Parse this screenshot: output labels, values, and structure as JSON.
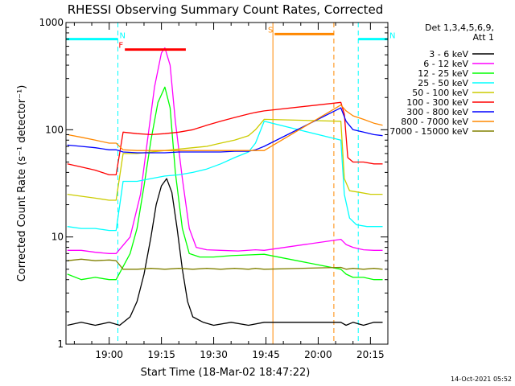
{
  "chart_data": {
    "type": "line",
    "title": "RHESSI Observing Summary Count Rates, Corrected",
    "xlabel": "Start Time (18-Mar-02 18:47:22)",
    "ylabel": "Corrected Count Rate (s⁻¹ detector⁻¹)",
    "yscale": "log",
    "ylim": [
      1,
      1000
    ],
    "xlim_minutes": [
      -12.4,
      80
    ],
    "x_ticks": [
      "19:00",
      "19:15",
      "19:30",
      "19:45",
      "20:00",
      "20:15"
    ],
    "x_tick_minutes": [
      0,
      15,
      30,
      45,
      60,
      75
    ],
    "y_ticks": [
      "1",
      "10",
      "100",
      "1000"
    ],
    "y_tick_values": [
      1,
      10,
      100,
      1000
    ],
    "legend_header": [
      "Det 1,3,4,5,6,9,",
      "Att 1"
    ],
    "legend_position": "right",
    "timestamp": "14-Oct-2021 05:52",
    "markers": [
      {
        "label": "N",
        "color": "#00ffff",
        "x_start": -12.4,
        "x_end": 2.5,
        "y": 700
      },
      {
        "label": "N",
        "color": "#00ffff",
        "x_start": 71.5,
        "x_end": 80,
        "y": 700
      },
      {
        "label": "F",
        "color": "#ff0000",
        "x_start": 4.5,
        "x_end": 22.0,
        "y": 560
      },
      {
        "label": "S",
        "color": "#ff8800",
        "x_start": 47.5,
        "x_end": 64.5,
        "y": 780
      }
    ],
    "gaps": [
      {
        "label": "night",
        "color": "#00ffff",
        "x_start": 2.5,
        "x_end": 71.5
      },
      {
        "label": "saa",
        "color": "#ff8800",
        "x_start": 47.0,
        "x_end": 64.5
      }
    ],
    "series": [
      {
        "name": "3 - 6 keV",
        "color": "#000000",
        "x": [
          -12,
          -8,
          -4,
          0,
          3,
          6,
          8,
          10,
          12,
          13.5,
          15,
          16.5,
          18,
          19.5,
          21,
          22.5,
          24,
          27,
          30,
          35,
          40,
          44.5,
          66.5,
          68,
          70,
          73,
          76,
          78.5
        ],
        "y": [
          1.5,
          1.6,
          1.5,
          1.6,
          1.5,
          1.8,
          2.5,
          4.5,
          10,
          20,
          30,
          35,
          26,
          12,
          5,
          2.5,
          1.8,
          1.6,
          1.5,
          1.6,
          1.5,
          1.6,
          1.6,
          1.5,
          1.6,
          1.5,
          1.6,
          1.6
        ]
      },
      {
        "name": "6 - 12 keV",
        "color": "#ff00ff",
        "x": [
          -12,
          -8,
          -4,
          0,
          2,
          6,
          9,
          11,
          13,
          15,
          16,
          17.5,
          19,
          21,
          23,
          25,
          28,
          32,
          37,
          42,
          44.5,
          66.5,
          68,
          70,
          73,
          76,
          78.5
        ],
        "y": [
          7.5,
          7.5,
          7.2,
          7.0,
          7.0,
          10,
          25,
          80,
          250,
          520,
          580,
          400,
          120,
          35,
          12,
          8.0,
          7.6,
          7.5,
          7.4,
          7.6,
          7.5,
          9.5,
          8.5,
          8.0,
          7.6,
          7.5,
          7.5
        ]
      },
      {
        "name": "12 - 25 keV",
        "color": "#00ff00",
        "x": [
          -12,
          -8,
          -4,
          0,
          2,
          6,
          8,
          10,
          12,
          14,
          16,
          17.5,
          19,
          21,
          23,
          26,
          30,
          35,
          40,
          44.5,
          66.5,
          68,
          70,
          73,
          76,
          78.5
        ],
        "y": [
          4.5,
          4.0,
          4.2,
          4.0,
          4.0,
          7.0,
          12,
          30,
          80,
          180,
          250,
          160,
          40,
          12,
          7.0,
          6.5,
          6.5,
          6.7,
          6.8,
          6.9,
          5.0,
          4.5,
          4.2,
          4.2,
          4.0,
          4.0
        ]
      },
      {
        "name": "25 - 50 keV",
        "color": "#00ffff",
        "x": [
          -12,
          -8,
          -4,
          0,
          2,
          4,
          8,
          12,
          16,
          20,
          24,
          28,
          32,
          36,
          40,
          42,
          44.5,
          66.5,
          67.5,
          69,
          71,
          74,
          77,
          78.5
        ],
        "y": [
          12.5,
          12.0,
          12.0,
          11.5,
          11.5,
          33,
          33,
          35,
          37,
          38,
          40,
          43,
          48,
          55,
          62,
          75,
          120,
          80,
          25,
          15,
          13,
          12.5,
          12.5,
          12.5
        ]
      },
      {
        "name": "50 - 100 keV",
        "color": "#cccc00",
        "x": [
          -12,
          -8,
          -4,
          0,
          2,
          4,
          8,
          12,
          16,
          20,
          24,
          28,
          32,
          36,
          40,
          42,
          44.5,
          66.5,
          67.5,
          69,
          72,
          75,
          78.5
        ],
        "y": [
          25,
          24,
          23,
          22,
          22,
          60,
          60,
          62,
          64,
          66,
          68,
          70,
          75,
          80,
          88,
          100,
          125,
          120,
          35,
          27,
          26,
          25,
          25
        ]
      },
      {
        "name": "100 - 300 keV",
        "color": "#ff0000",
        "x": [
          -12,
          -8,
          -4,
          0,
          2,
          4,
          8,
          12,
          16,
          20,
          24,
          28,
          32,
          36,
          40,
          42,
          44.5,
          66.5,
          67.5,
          68.5,
          70,
          73,
          76,
          78.5
        ],
        "y": [
          48,
          45,
          42,
          38,
          38,
          95,
          92,
          90,
          92,
          95,
          100,
          110,
          120,
          130,
          140,
          145,
          150,
          180,
          140,
          55,
          50,
          50,
          48,
          48
        ]
      },
      {
        "name": "300 - 800 keV",
        "color": "#0000ff",
        "x": [
          -12,
          -8,
          -4,
          0,
          2,
          4,
          8,
          12,
          16,
          20,
          24,
          28,
          32,
          36,
          40,
          42,
          44.5,
          66.5,
          68,
          70,
          73,
          76,
          78.5
        ],
        "y": [
          72,
          70,
          68,
          65,
          65,
          62,
          61,
          61,
          61,
          62,
          62,
          62,
          62,
          63,
          63,
          65,
          70,
          160,
          120,
          100,
          95,
          90,
          88
        ]
      },
      {
        "name": "800 - 7000 keV",
        "color": "#ff8800",
        "x": [
          -12,
          -8,
          -4,
          0,
          2,
          4,
          8,
          12,
          16,
          20,
          24,
          28,
          32,
          36,
          40,
          42,
          44.5,
          66.5,
          68,
          70,
          73,
          76,
          78.5
        ],
        "y": [
          90,
          85,
          80,
          75,
          75,
          65,
          64,
          64,
          64,
          64,
          64,
          64,
          64,
          64,
          64,
          64,
          64,
          170,
          150,
          135,
          125,
          115,
          110
        ]
      },
      {
        "name": "7000 - 15000 keV",
        "color": "#808000",
        "x": [
          -12,
          -8,
          -4,
          0,
          2,
          4,
          8,
          12,
          16,
          20,
          24,
          28,
          32,
          36,
          40,
          42,
          44.5,
          66.5,
          68,
          70,
          73,
          76,
          78.5
        ],
        "y": [
          6.0,
          6.2,
          6.0,
          6.1,
          6.0,
          5.0,
          5.0,
          5.1,
          5.0,
          5.1,
          5.0,
          5.1,
          5.0,
          5.1,
          5.0,
          5.1,
          5.0,
          5.2,
          5.0,
          5.1,
          5.0,
          5.1,
          5.0
        ]
      }
    ]
  }
}
